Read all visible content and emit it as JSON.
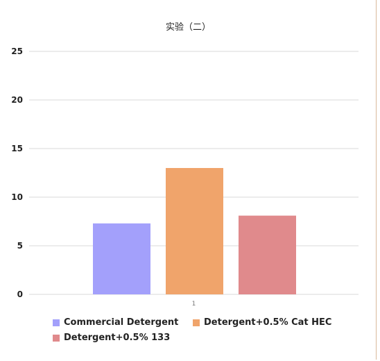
{
  "chart_data": {
    "type": "bar",
    "title": "实验（二）",
    "categories": [
      "1"
    ],
    "series": [
      {
        "name": "Commercial Detergent",
        "values": [
          7.3
        ],
        "color": "#a3a0fb"
      },
      {
        "name": "Detergent+0.5% Cat HEC",
        "values": [
          13.0
        ],
        "color": "#f0a46b"
      },
      {
        "name": "Detergent+0.5% 133",
        "values": [
          8.1
        ],
        "color": "#e08a8c"
      }
    ],
    "ylim": [
      0,
      25
    ],
    "yticks": [
      "0",
      "5",
      "10",
      "15",
      "20",
      "25"
    ],
    "grid": true,
    "legend_position": "bottom"
  }
}
